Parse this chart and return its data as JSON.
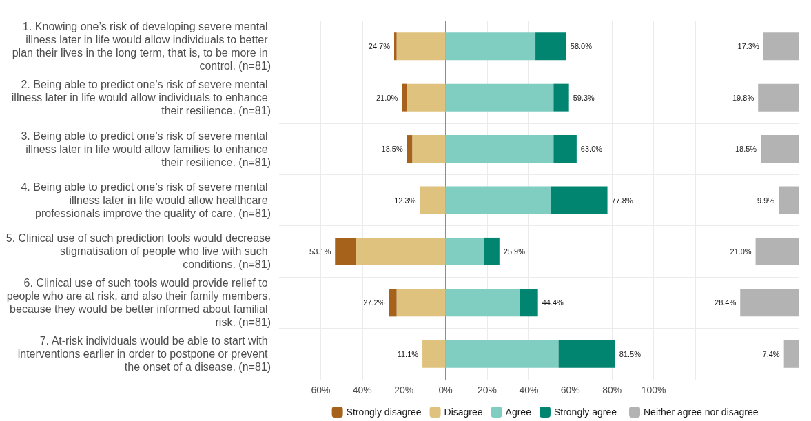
{
  "chart_data": [
    {
      "type": "bar",
      "orientation": "horizontal",
      "stacked": true,
      "categories": [
        "1. Knowing one’s risk of developing severe mental illness later in life would allow individuals to better plan their lives in the long term, that is, to be more in control. (n=81)",
        "2. Being able to predict one’s risk of severe mental illness later in life would allow individuals to enhance their resilience. (n=81)",
        "3. Being able to predict one’s risk of severe mental illness later in life would allow families to enhance their resilience. (n=81)",
        "4. Being able to predict one’s risk of severe mental illness later in life would allow healthcare professionals improve the quality of care. (n=81)",
        "5. Clinical use of such prediction tools would decrease stigmatisation of people who live with such conditions. (n=81)",
        "6. Clinical use of such tools would provide relief to people who are at risk, and also their family members, because they would be better informed about familial risk. (n=81)",
        "7. At-risk individuals would be able to start with interventions earlier in order to postpone or prevent the onset of a disease. (n=81)"
      ],
      "series": [
        {
          "name": "Disagree",
          "color": "#dfc27d",
          "values": [
            -23.5,
            -18.5,
            -16.0,
            -12.3,
            -43.2,
            -23.5,
            -11.1
          ]
        },
        {
          "name": "Strongly disagree",
          "color": "#a6611a",
          "values": [
            -1.2,
            -2.5,
            -2.5,
            null,
            -9.9,
            -3.7,
            null
          ]
        },
        {
          "name": "Agree",
          "color": "#80cdc1",
          "values": [
            43.2,
            51.9,
            51.9,
            50.6,
            18.5,
            35.8,
            54.3
          ]
        },
        {
          "name": "Strongly agree",
          "color": "#018571",
          "values": [
            14.8,
            7.4,
            11.1,
            27.2,
            7.4,
            8.6,
            27.2
          ]
        }
      ],
      "xlim": [
        -80,
        170
      ],
      "xticks": [
        {
          "value": -60,
          "label": "60%"
        },
        {
          "value": -40,
          "label": "40%"
        },
        {
          "value": -20,
          "label": "20%"
        },
        {
          "value": 0,
          "label": "0%"
        },
        {
          "value": 20,
          "label": "20%"
        },
        {
          "value": 40,
          "label": "40%"
        },
        {
          "value": 60,
          "label": "60%"
        },
        {
          "value": 80,
          "label": "80%"
        },
        {
          "value": 100,
          "label": "100%"
        },
        {
          "value": 120,
          "label": null
        },
        {
          "value": 140,
          "label": null
        },
        {
          "value": 160,
          "label": null
        }
      ],
      "ref_lines": [
        {
          "axis": "x",
          "value": 0,
          "color": "#8c8c8c"
        }
      ],
      "annotations": [
        {
          "text": "24.7%",
          "x": -24.7,
          "y": "1. Knowing one’s risk of developing severe mental illness later in life would allow individuals to better plan their lives in the long term, that is, to be more in control. (n=81)"
        },
        {
          "text": "58.0%",
          "x": 58.0,
          "y": "1. Knowing one’s risk of developing severe mental illness later in life would allow individuals to better plan their lives in the long term, that is, to be more in control. (n=81)"
        },
        {
          "text": "21.0%",
          "x": -21.0,
          "y": "2. Being able to predict one’s risk of severe mental illness later in life would allow individuals to enhance their resilience. (n=81)"
        },
        {
          "text": "59.3%",
          "x": 59.3,
          "y": "2. Being able to predict one’s risk of severe mental illness later in life would allow individuals to enhance their resilience. (n=81)"
        },
        {
          "text": "18.5%",
          "x": -18.5,
          "y": "3. Being able to predict one’s risk of severe mental illness later in life would allow families to enhance their resilience. (n=81)"
        },
        {
          "text": "63.0%",
          "x": 63.0,
          "y": "3. Being able to predict one’s risk of severe mental illness later in life would allow families to enhance their resilience. (n=81)"
        },
        {
          "text": "12.3%",
          "x": -12.3,
          "y": "4. Being able to predict one’s risk of severe mental illness later in life would allow healthcare professionals improve the quality of care. (n=81)"
        },
        {
          "text": "77.8%",
          "x": 77.8,
          "y": "4. Being able to predict one’s risk of severe mental illness later in life would allow healthcare professionals improve the quality of care. (n=81)"
        },
        {
          "text": "53.1%",
          "x": -53.1,
          "y": "5. Clinical use of such prediction tools would decrease stigmatisation of people who live with such conditions. (n=81)"
        },
        {
          "text": "25.9%",
          "x": 25.9,
          "y": "5. Clinical use of such prediction tools would decrease stigmatisation of people who live with such conditions. (n=81)"
        },
        {
          "text": "27.2%",
          "x": -27.2,
          "y": "6. Clinical use of such tools would provide relief to people who are at risk, and also their family members, because they would be better informed about familial risk. (n=81)"
        },
        {
          "text": "44.4%",
          "x": 44.4,
          "y": "6. Clinical use of such tools would provide relief to people who are at risk, and also their family members, because they would be better informed about familial risk. (n=81)"
        },
        {
          "text": "11.1%",
          "x": -11.1,
          "y": "7. At-risk individuals would be able to start with interventions earlier in order to postpone or prevent the onset of a disease. (n=81)"
        },
        {
          "text": "81.5%",
          "x": 81.5,
          "y": "7. At-risk individuals would be able to start with interventions earlier in order to postpone or prevent the onset of a disease. (n=81)"
        }
      ],
      "grid": true,
      "legend": "bottom"
    },
    {
      "type": "bar",
      "orientation": "horizontal",
      "categories": [
        null,
        null,
        null,
        null,
        null,
        null,
        null
      ],
      "series": [
        {
          "name": "Neither agree nor disagree",
          "color": "#b3b3b3",
          "values": [
            17.3,
            19.8,
            18.5,
            9.9,
            21.0,
            28.4,
            7.4
          ],
          "value_labels": [
            "17.3%",
            "19.8%",
            "18.5%",
            "9.9%",
            "21.0%",
            "28.4%",
            "7.4%"
          ]
        }
      ],
      "xlim": [
        250,
        0
      ],
      "legend": "bottom"
    }
  ]
}
